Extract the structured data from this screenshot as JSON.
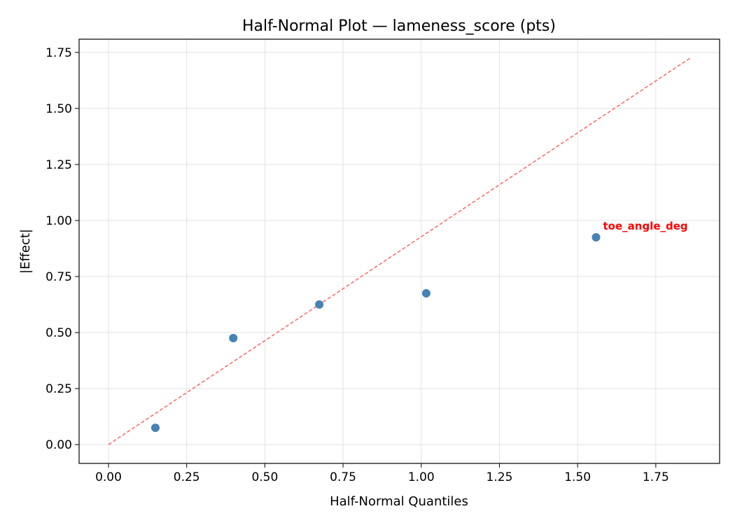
{
  "chart_data": {
    "type": "scatter",
    "title": "Half-Normal Plot — lameness_score (pts)",
    "xlabel": "Half-Normal Quantiles",
    "ylabel": "|Effect|",
    "xlim": [
      -0.094,
      1.954
    ],
    "ylim": [
      -0.084,
      1.809
    ],
    "xticks": [
      "0.00",
      "0.25",
      "0.50",
      "0.75",
      "1.00",
      "1.25",
      "1.50",
      "1.75"
    ],
    "yticks": [
      "0.00",
      "0.25",
      "0.50",
      "0.75",
      "1.00",
      "1.25",
      "1.50",
      "1.75"
    ],
    "grid": true,
    "points": {
      "x": [
        0.15,
        0.399,
        0.674,
        1.016,
        1.559
      ],
      "y": [
        0.075,
        0.475,
        0.625,
        0.675,
        0.925
      ],
      "color": "#4682b4"
    },
    "reference_line": {
      "x": [
        0,
        1.86
      ],
      "y": [
        0,
        1.725
      ],
      "color": "#ff6464",
      "style": "dashed"
    },
    "annotations": [
      {
        "text": "toe_angle_deg",
        "x": 1.559,
        "y": 0.925,
        "color": "#ff0000"
      }
    ]
  }
}
